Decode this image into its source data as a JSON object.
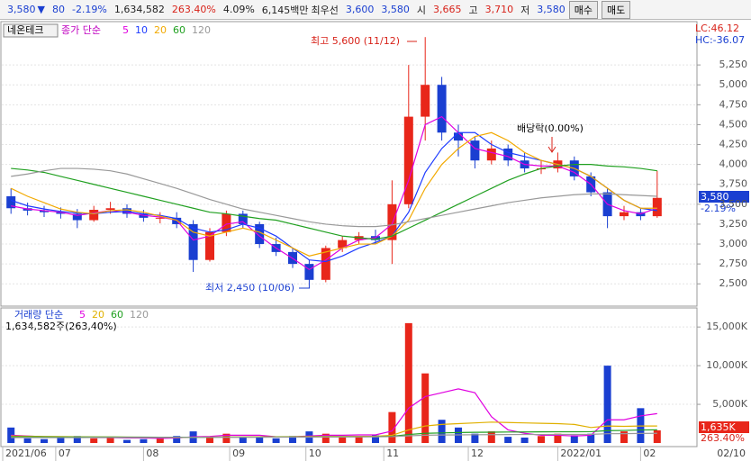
{
  "header": {
    "price": "3,580",
    "arrow": "▼",
    "change": "80",
    "change_pct": "-2.19%",
    "volume": "1,634,582",
    "volume_ratio": "263.40%",
    "turnover": "4.09%",
    "amount": "6,145백만",
    "best_label": "최우선",
    "best_ask": "3,600",
    "best_bid": "3,580",
    "open_label": "시",
    "open": "3,665",
    "high_label": "고",
    "high": "3,710",
    "low_label": "저",
    "low": "3,580",
    "buy": "매수",
    "sell": "매도"
  },
  "chart_data": [
    {
      "type": "candlestick",
      "stock_name": "네온테크",
      "legend_title": "종가 단순",
      "lc": "LC:46.12",
      "hc": "HC:-36.07",
      "last_price": "3,580",
      "last_change": "-2.19%",
      "annotations": [
        "최고 5,600 (11/12)",
        "최저 2,450 (10/06)",
        "배당락(0.00%)"
      ],
      "up_color": "#e8261a",
      "down_color": "#1a3fd1",
      "open": [
        3600,
        3450,
        3420,
        3400,
        3380,
        3300,
        3430,
        3450,
        3380,
        3330,
        3330,
        3250,
        2800,
        3150,
        3380,
        3250,
        3000,
        2900,
        2750,
        2550,
        2950,
        3050,
        3100,
        3050,
        3500,
        4600,
        5000,
        4400,
        4300,
        4050,
        4200,
        4050,
        3950,
        3950,
        4050,
        3850,
        3650,
        3350,
        3400,
        3350
      ],
      "high": [
        3700,
        3520,
        3480,
        3460,
        3440,
        3480,
        3530,
        3500,
        3430,
        3400,
        3400,
        3300,
        3200,
        3420,
        3420,
        3280,
        3080,
        2950,
        2800,
        2980,
        3100,
        3150,
        3180,
        3800,
        5250,
        5600,
        5100,
        4500,
        4350,
        4300,
        4250,
        4150,
        4050,
        4150,
        4100,
        3900,
        3700,
        3480,
        3450,
        3920
      ],
      "low": [
        3380,
        3360,
        3340,
        3320,
        3200,
        3280,
        3380,
        3330,
        3280,
        3260,
        3200,
        2650,
        2780,
        3100,
        3200,
        2950,
        2850,
        2700,
        2450,
        2520,
        2900,
        3000,
        3000,
        2750,
        3450,
        4300,
        4300,
        4100,
        3950,
        4000,
        3980,
        3900,
        3880,
        3900,
        3800,
        3600,
        3200,
        3300,
        3300,
        3330
      ],
      "close": [
        3450,
        3420,
        3400,
        3380,
        3300,
        3430,
        3450,
        3380,
        3330,
        3330,
        3250,
        2800,
        3150,
        3380,
        3250,
        3000,
        2900,
        2750,
        2550,
        2950,
        3050,
        3100,
        3050,
        3500,
        4600,
        5000,
        4400,
        4300,
        4050,
        4200,
        4050,
        3950,
        3950,
        4050,
        3850,
        3650,
        3350,
        3400,
        3350,
        3580
      ],
      "series": [
        {
          "name": "5",
          "color": "#e000e0",
          "values": [
            3480,
            3440,
            3420,
            3400,
            3360,
            3390,
            3420,
            3400,
            3360,
            3340,
            3300,
            3050,
            3100,
            3250,
            3280,
            3100,
            2950,
            2820,
            2680,
            2800,
            2950,
            3050,
            3080,
            3250,
            3800,
            4500,
            4600,
            4400,
            4200,
            4150,
            4100,
            4000,
            3980,
            3980,
            3900,
            3750,
            3500,
            3420,
            3380,
            3450
          ]
        },
        {
          "name": "10",
          "color": "#1e3cff",
          "values": [
            3550,
            3480,
            3440,
            3410,
            3390,
            3380,
            3400,
            3410,
            3380,
            3360,
            3320,
            3200,
            3150,
            3180,
            3250,
            3200,
            3100,
            2950,
            2800,
            2780,
            2850,
            2950,
            3020,
            3100,
            3400,
            3900,
            4200,
            4400,
            4400,
            4250,
            4150,
            4100,
            4050,
            4000,
            3950,
            3850,
            3700,
            3550,
            3450,
            3420
          ]
        },
        {
          "name": "20",
          "color": "#f2a900",
          "values": [
            3700,
            3600,
            3520,
            3440,
            3400,
            3380,
            3420,
            3430,
            3400,
            3350,
            3300,
            3150,
            3100,
            3150,
            3200,
            3150,
            3050,
            2950,
            2850,
            2900,
            2950,
            3000,
            3000,
            3100,
            3300,
            3700,
            4000,
            4200,
            4350,
            4400,
            4300,
            4150,
            4050,
            4000,
            3950,
            3850,
            3700,
            3550,
            3450,
            3450
          ]
        },
        {
          "name": "60",
          "color": "#20a020",
          "values": [
            3950,
            3930,
            3900,
            3850,
            3800,
            3750,
            3700,
            3650,
            3600,
            3550,
            3500,
            3450,
            3400,
            3380,
            3350,
            3320,
            3300,
            3250,
            3200,
            3150,
            3100,
            3080,
            3060,
            3100,
            3200,
            3300,
            3400,
            3500,
            3600,
            3700,
            3800,
            3880,
            3950,
            3980,
            4000,
            4000,
            3980,
            3970,
            3950,
            3920
          ]
        },
        {
          "name": "120",
          "color": "#999999",
          "values": [
            3850,
            3880,
            3920,
            3950,
            3950,
            3940,
            3920,
            3880,
            3820,
            3760,
            3700,
            3630,
            3560,
            3500,
            3440,
            3400,
            3360,
            3320,
            3280,
            3250,
            3230,
            3220,
            3220,
            3240,
            3280,
            3320,
            3360,
            3400,
            3440,
            3480,
            3520,
            3550,
            3580,
            3600,
            3620,
            3630,
            3630,
            3620,
            3610,
            3600
          ]
        }
      ],
      "ylim": [
        2220,
        5670
      ],
      "yticks": [
        {
          "value": 2500,
          "label": "2,500"
        },
        {
          "value": 2750,
          "label": "2,750"
        },
        {
          "value": 3000,
          "label": "3,000"
        },
        {
          "value": 3250,
          "label": "3,250"
        },
        {
          "value": 3500,
          "label": "3,500"
        },
        {
          "value": 3750,
          "label": "3,750"
        },
        {
          "value": 4000,
          "label": "4,000"
        },
        {
          "value": 4250,
          "label": "4,250"
        },
        {
          "value": 4500,
          "label": "4,500"
        },
        {
          "value": 4750,
          "label": "4,750"
        },
        {
          "value": 5000,
          "label": "5,000"
        },
        {
          "value": 5250,
          "label": "5,250"
        }
      ],
      "grid": true
    },
    {
      "type": "bar",
      "legend_title": "거래량 단순",
      "summary": "1,634,582주(263,40%)",
      "last_volume": "1,635K",
      "last_ratio": "263.40%",
      "values": [
        2000,
        600,
        500,
        700,
        900,
        600,
        800,
        400,
        500,
        600,
        900,
        1500,
        800,
        1200,
        700,
        800,
        600,
        900,
        1500,
        1200,
        700,
        900,
        1000,
        4000,
        15500,
        9000,
        3000,
        2000,
        1200,
        1500,
        800,
        700,
        900,
        1200,
        1000,
        1200,
        10000,
        1500,
        4500,
        1635
      ],
      "up_color": "#e8261a",
      "down_color": "#1a3fd1",
      "series": [
        {
          "name": "5",
          "color": "#e000e0",
          "values": [
            1000,
            900,
            800,
            800,
            750,
            700,
            700,
            650,
            650,
            600,
            650,
            800,
            850,
            1000,
            1000,
            1000,
            800,
            800,
            900,
            1000,
            1000,
            1050,
            1050,
            1550,
            4500,
            6000,
            6500,
            7000,
            6500,
            3400,
            1700,
            1250,
            1000,
            1000,
            900,
            1000,
            3000,
            3000,
            3500,
            3800
          ]
        },
        {
          "name": "20",
          "color": "#e0b000",
          "values": [
            900,
            880,
            850,
            830,
            810,
            790,
            780,
            760,
            750,
            740,
            730,
            740,
            760,
            780,
            790,
            800,
            810,
            820,
            830,
            840,
            850,
            860,
            880,
            1000,
            1700,
            2200,
            2400,
            2500,
            2600,
            2700,
            2650,
            2600,
            2550,
            2500,
            2400,
            2000,
            2200,
            2150,
            2200,
            2200
          ]
        },
        {
          "name": "60",
          "color": "#20a020",
          "values": [
            800,
            800,
            790,
            780,
            780,
            770,
            770,
            760,
            760,
            750,
            750,
            750,
            750,
            760,
            760,
            760,
            770,
            770,
            780,
            790,
            800,
            810,
            820,
            860,
            1100,
            1250,
            1300,
            1350,
            1380,
            1400,
            1420,
            1430,
            1440,
            1450,
            1450,
            1460,
            1600,
            1620,
            1680,
            1700
          ]
        },
        {
          "name": "120",
          "color": "#999999",
          "values": [
            700,
            700,
            700,
            700,
            700,
            710,
            710,
            710,
            720,
            720,
            720,
            730,
            730,
            740,
            740,
            750,
            750,
            760,
            760,
            770,
            780,
            790,
            800,
            820,
            930,
            1000,
            1030,
            1050,
            1070,
            1080,
            1090,
            1100,
            1100,
            1110,
            1110,
            1120,
            1200,
            1210,
            1240,
            1250
          ]
        }
      ],
      "ylim": [
        0,
        17000
      ],
      "yticks": [
        {
          "value": 5000,
          "label": "5,000K"
        },
        {
          "value": 10000,
          "label": "10,000K"
        },
        {
          "value": 15000,
          "label": "15,000K"
        }
      ],
      "xticks": [
        {
          "value": 0,
          "label": "2021/06"
        },
        {
          "value": 3.2,
          "label": "07"
        },
        {
          "value": 8.5,
          "label": "08"
        },
        {
          "value": 13.7,
          "label": "09"
        },
        {
          "value": 18.3,
          "label": "10"
        },
        {
          "value": 23,
          "label": "11"
        },
        {
          "value": 28.1,
          "label": "12"
        },
        {
          "value": 33.5,
          "label": "2022/01"
        },
        {
          "value": 38.5,
          "label": "02"
        },
        {
          "value": 39,
          "label": "02/10"
        }
      ],
      "grid": true
    }
  ]
}
